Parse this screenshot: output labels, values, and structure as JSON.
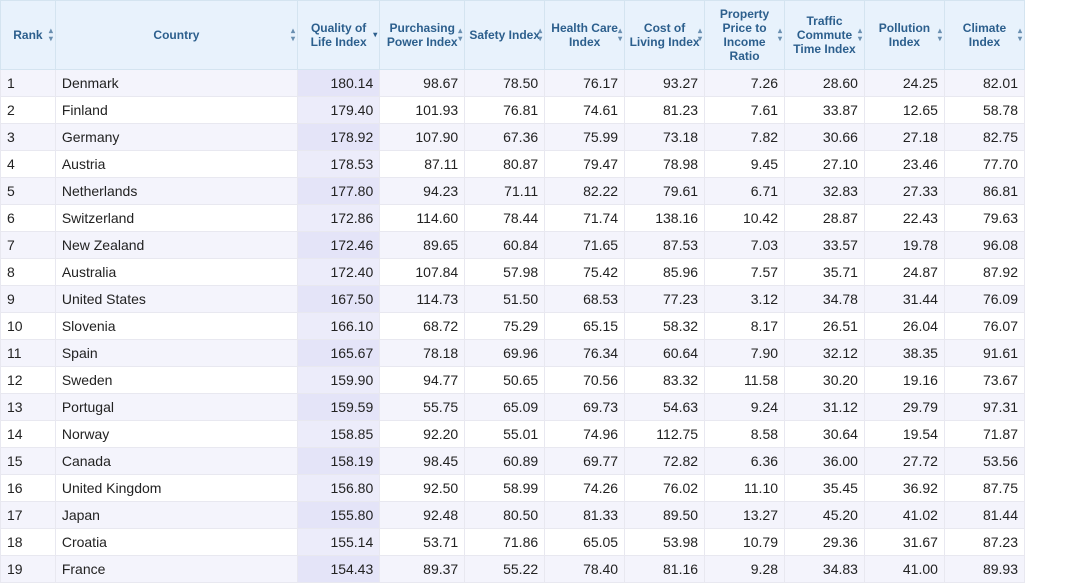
{
  "columns": [
    {
      "key": "rank",
      "label": "Rank",
      "sortable": true,
      "sorted": false
    },
    {
      "key": "country",
      "label": "Country",
      "sortable": true,
      "sorted": false
    },
    {
      "key": "qol",
      "label": "Quality of Life Index",
      "sortable": true,
      "sorted": true
    },
    {
      "key": "ppi",
      "label": "Purchasing Power Index",
      "sortable": true,
      "sorted": false
    },
    {
      "key": "safety",
      "label": "Safety Index",
      "sortable": true,
      "sorted": false
    },
    {
      "key": "health",
      "label": "Health Care Index",
      "sortable": true,
      "sorted": false
    },
    {
      "key": "col",
      "label": "Cost of Living Index",
      "sortable": true,
      "sorted": false
    },
    {
      "key": "ppir",
      "label": "Property Price to Income Ratio",
      "sortable": true,
      "sorted": false
    },
    {
      "key": "traffic",
      "label": "Traffic Commute Time Index",
      "sortable": true,
      "sorted": false
    },
    {
      "key": "pollution",
      "label": "Pollution Index",
      "sortable": true,
      "sorted": false
    },
    {
      "key": "climate",
      "label": "Climate Index",
      "sortable": true,
      "sorted": false
    }
  ],
  "rows": [
    {
      "rank": "1",
      "country": "Denmark",
      "qol": "180.14",
      "ppi": "98.67",
      "safety": "78.50",
      "health": "76.17",
      "col": "93.27",
      "ppir": "7.26",
      "traffic": "28.60",
      "pollution": "24.25",
      "climate": "82.01"
    },
    {
      "rank": "2",
      "country": "Finland",
      "qol": "179.40",
      "ppi": "101.93",
      "safety": "76.81",
      "health": "74.61",
      "col": "81.23",
      "ppir": "7.61",
      "traffic": "33.87",
      "pollution": "12.65",
      "climate": "58.78"
    },
    {
      "rank": "3",
      "country": "Germany",
      "qol": "178.92",
      "ppi": "107.90",
      "safety": "67.36",
      "health": "75.99",
      "col": "73.18",
      "ppir": "7.82",
      "traffic": "30.66",
      "pollution": "27.18",
      "climate": "82.75"
    },
    {
      "rank": "4",
      "country": "Austria",
      "qol": "178.53",
      "ppi": "87.11",
      "safety": "80.87",
      "health": "79.47",
      "col": "78.98",
      "ppir": "9.45",
      "traffic": "27.10",
      "pollution": "23.46",
      "climate": "77.70"
    },
    {
      "rank": "5",
      "country": "Netherlands",
      "qol": "177.80",
      "ppi": "94.23",
      "safety": "71.11",
      "health": "82.22",
      "col": "79.61",
      "ppir": "6.71",
      "traffic": "32.83",
      "pollution": "27.33",
      "climate": "86.81"
    },
    {
      "rank": "6",
      "country": "Switzerland",
      "qol": "172.86",
      "ppi": "114.60",
      "safety": "78.44",
      "health": "71.74",
      "col": "138.16",
      "ppir": "10.42",
      "traffic": "28.87",
      "pollution": "22.43",
      "climate": "79.63"
    },
    {
      "rank": "7",
      "country": "New Zealand",
      "qol": "172.46",
      "ppi": "89.65",
      "safety": "60.84",
      "health": "71.65",
      "col": "87.53",
      "ppir": "7.03",
      "traffic": "33.57",
      "pollution": "19.78",
      "climate": "96.08"
    },
    {
      "rank": "8",
      "country": "Australia",
      "qol": "172.40",
      "ppi": "107.84",
      "safety": "57.98",
      "health": "75.42",
      "col": "85.96",
      "ppir": "7.57",
      "traffic": "35.71",
      "pollution": "24.87",
      "climate": "87.92"
    },
    {
      "rank": "9",
      "country": "United States",
      "qol": "167.50",
      "ppi": "114.73",
      "safety": "51.50",
      "health": "68.53",
      "col": "77.23",
      "ppir": "3.12",
      "traffic": "34.78",
      "pollution": "31.44",
      "climate": "76.09"
    },
    {
      "rank": "10",
      "country": "Slovenia",
      "qol": "166.10",
      "ppi": "68.72",
      "safety": "75.29",
      "health": "65.15",
      "col": "58.32",
      "ppir": "8.17",
      "traffic": "26.51",
      "pollution": "26.04",
      "climate": "76.07"
    },
    {
      "rank": "11",
      "country": "Spain",
      "qol": "165.67",
      "ppi": "78.18",
      "safety": "69.96",
      "health": "76.34",
      "col": "60.64",
      "ppir": "7.90",
      "traffic": "32.12",
      "pollution": "38.35",
      "climate": "91.61"
    },
    {
      "rank": "12",
      "country": "Sweden",
      "qol": "159.90",
      "ppi": "94.77",
      "safety": "50.65",
      "health": "70.56",
      "col": "83.32",
      "ppir": "11.58",
      "traffic": "30.20",
      "pollution": "19.16",
      "climate": "73.67"
    },
    {
      "rank": "13",
      "country": "Portugal",
      "qol": "159.59",
      "ppi": "55.75",
      "safety": "65.09",
      "health": "69.73",
      "col": "54.63",
      "ppir": "9.24",
      "traffic": "31.12",
      "pollution": "29.79",
      "climate": "97.31"
    },
    {
      "rank": "14",
      "country": "Norway",
      "qol": "158.85",
      "ppi": "92.20",
      "safety": "55.01",
      "health": "74.96",
      "col": "112.75",
      "ppir": "8.58",
      "traffic": "30.64",
      "pollution": "19.54",
      "climate": "71.87"
    },
    {
      "rank": "15",
      "country": "Canada",
      "qol": "158.19",
      "ppi": "98.45",
      "safety": "60.89",
      "health": "69.77",
      "col": "72.82",
      "ppir": "6.36",
      "traffic": "36.00",
      "pollution": "27.72",
      "climate": "53.56"
    },
    {
      "rank": "16",
      "country": "United Kingdom",
      "qol": "156.80",
      "ppi": "92.50",
      "safety": "58.99",
      "health": "74.26",
      "col": "76.02",
      "ppir": "11.10",
      "traffic": "35.45",
      "pollution": "36.92",
      "climate": "87.75"
    },
    {
      "rank": "17",
      "country": "Japan",
      "qol": "155.80",
      "ppi": "92.48",
      "safety": "80.50",
      "health": "81.33",
      "col": "89.50",
      "ppir": "13.27",
      "traffic": "45.20",
      "pollution": "41.02",
      "climate": "81.44"
    },
    {
      "rank": "18",
      "country": "Croatia",
      "qol": "155.14",
      "ppi": "53.71",
      "safety": "71.86",
      "health": "65.05",
      "col": "53.98",
      "ppir": "10.79",
      "traffic": "29.36",
      "pollution": "31.67",
      "climate": "87.23"
    },
    {
      "rank": "19",
      "country": "France",
      "qol": "154.43",
      "ppi": "89.37",
      "safety": "55.22",
      "health": "78.40",
      "col": "81.16",
      "ppir": "9.28",
      "traffic": "34.83",
      "pollution": "41.00",
      "climate": "89.93"
    }
  ]
}
